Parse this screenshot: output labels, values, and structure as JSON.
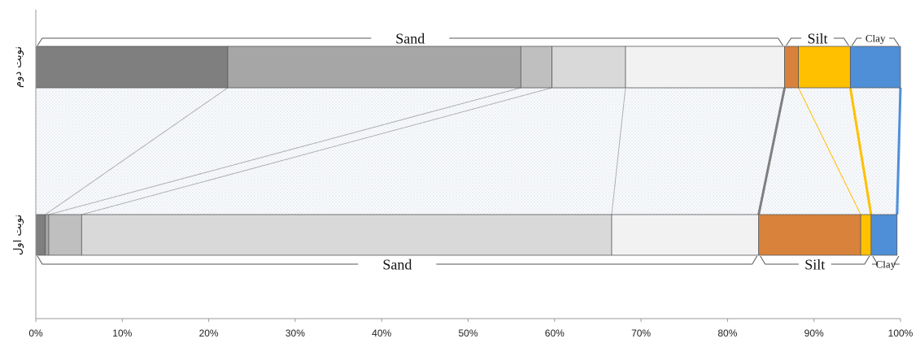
{
  "chart_data": {
    "type": "bar",
    "orientation": "horizontal",
    "stacked": true,
    "xlim": [
      0,
      100
    ],
    "x_ticks": [
      "0%",
      "10%",
      "20%",
      "30%",
      "40%",
      "50%",
      "60%",
      "70%",
      "80%",
      "90%",
      "100%"
    ],
    "grid": false,
    "legend": "none",
    "categories": [
      "نوبت دوم",
      "نوبت اول"
    ],
    "bars": [
      {
        "category": "نوبت دوم",
        "segments": [
          {
            "value": 22.2,
            "color": "#7f7f7f"
          },
          {
            "value": 33.9,
            "color": "#a6a6a6"
          },
          {
            "value": 3.6,
            "color": "#bfbfbf"
          },
          {
            "value": 8.5,
            "color": "#d9d9d9"
          },
          {
            "value": 18.4,
            "color": "#f2f2f2"
          },
          {
            "value": 1.6,
            "color": "#d9823b"
          },
          {
            "value": 6.0,
            "color": "#ffc000"
          },
          {
            "value": 5.8,
            "color": "#4f8fd8"
          }
        ]
      },
      {
        "category": "نوبت اول",
        "segments": [
          {
            "value": 1.1,
            "color": "#7f7f7f"
          },
          {
            "value": 0.4,
            "color": "#a6a6a6"
          },
          {
            "value": 3.8,
            "color": "#bfbfbf"
          },
          {
            "value": 61.3,
            "color": "#d9d9d9"
          },
          {
            "value": 17.0,
            "color": "#f2f2f2"
          },
          {
            "value": 11.8,
            "color": "#d9823b"
          },
          {
            "value": 1.2,
            "color": "#ffc000"
          },
          {
            "value": 3.0,
            "color": "#4f8fd8"
          }
        ]
      }
    ],
    "groups": [
      {
        "category": "نوبت دوم",
        "label": "Sand",
        "start": 0,
        "end": 86.6
      },
      {
        "category": "نوبت دوم",
        "label": "Silt",
        "start": 86.6,
        "end": 94.2
      },
      {
        "category": "نوبت دوم",
        "label": "Clay",
        "start": 94.2,
        "end": 100
      },
      {
        "category": "نوبت اول",
        "label": "Sand",
        "start": 0,
        "end": 83.6
      },
      {
        "category": "نوبت اول",
        "label": "Silt",
        "start": 83.6,
        "end": 96.6
      },
      {
        "category": "نوبت اول",
        "label": "Clay",
        "start": 96.6,
        "end": 100
      }
    ],
    "connectors": [
      {
        "from": 22.2,
        "to": 1.1,
        "color": "#b0b0b0"
      },
      {
        "from": 56.1,
        "to": 1.5,
        "color": "#b0b0b0"
      },
      {
        "from": 59.7,
        "to": 5.3,
        "color": "#b0b0b0"
      },
      {
        "from": 68.2,
        "to": 66.6,
        "color": "#b0b0b0"
      },
      {
        "from": 86.6,
        "to": 83.6,
        "color": "#7f7f7f"
      },
      {
        "from": 88.2,
        "to": 95.4,
        "color": "#ffc000"
      },
      {
        "from": 94.2,
        "to": 96.6,
        "color": "#ffc000"
      },
      {
        "from": 100,
        "to": 99.6,
        "color": "#4f8fd8"
      }
    ]
  }
}
